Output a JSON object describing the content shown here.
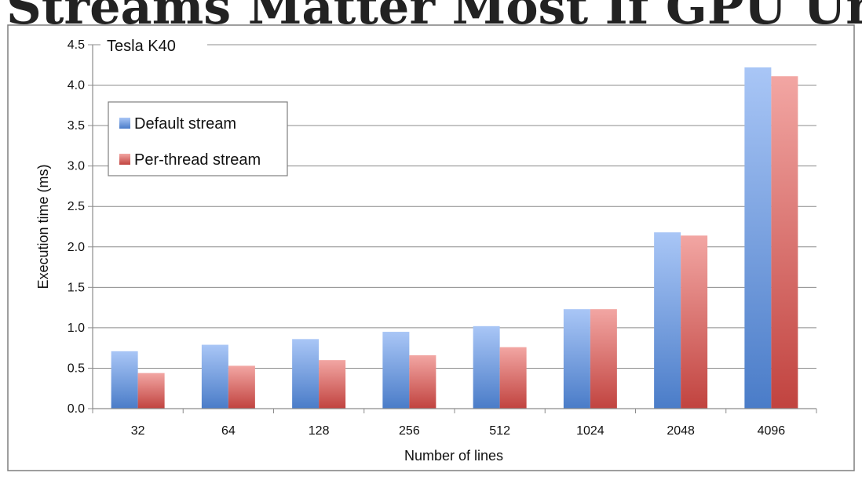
{
  "slide": {
    "title": "Streams Matter Most If GPU Underutilized"
  },
  "colors": {
    "default_top": "#a9c6f6",
    "default_bottom": "#4a7cc8",
    "perthread_top": "#f2a6a3",
    "perthread_bottom": "#c1433f",
    "grid": "#8c8c8c",
    "axis": "#8c8c8c",
    "frame": "#7f7f7f"
  },
  "chart_data": {
    "type": "bar",
    "title": "Tesla K40",
    "xlabel": "Number of lines",
    "ylabel": "Execution time (ms)",
    "categories": [
      "32",
      "64",
      "128",
      "256",
      "512",
      "1024",
      "2048",
      "4096"
    ],
    "series": [
      {
        "name": "Default stream",
        "values": [
          0.71,
          0.79,
          0.86,
          0.95,
          1.02,
          1.23,
          2.18,
          4.22
        ]
      },
      {
        "name": "Per-thread stream",
        "values": [
          0.44,
          0.53,
          0.6,
          0.66,
          0.76,
          1.23,
          2.14,
          4.11
        ]
      }
    ],
    "ylim": [
      0,
      4.5
    ],
    "yticks": [
      "0.0",
      "0.5",
      "1.0",
      "1.5",
      "2.0",
      "2.5",
      "3.0",
      "3.5",
      "4.0",
      "4.5"
    ],
    "grid": true,
    "legend_position": "upper-left"
  }
}
